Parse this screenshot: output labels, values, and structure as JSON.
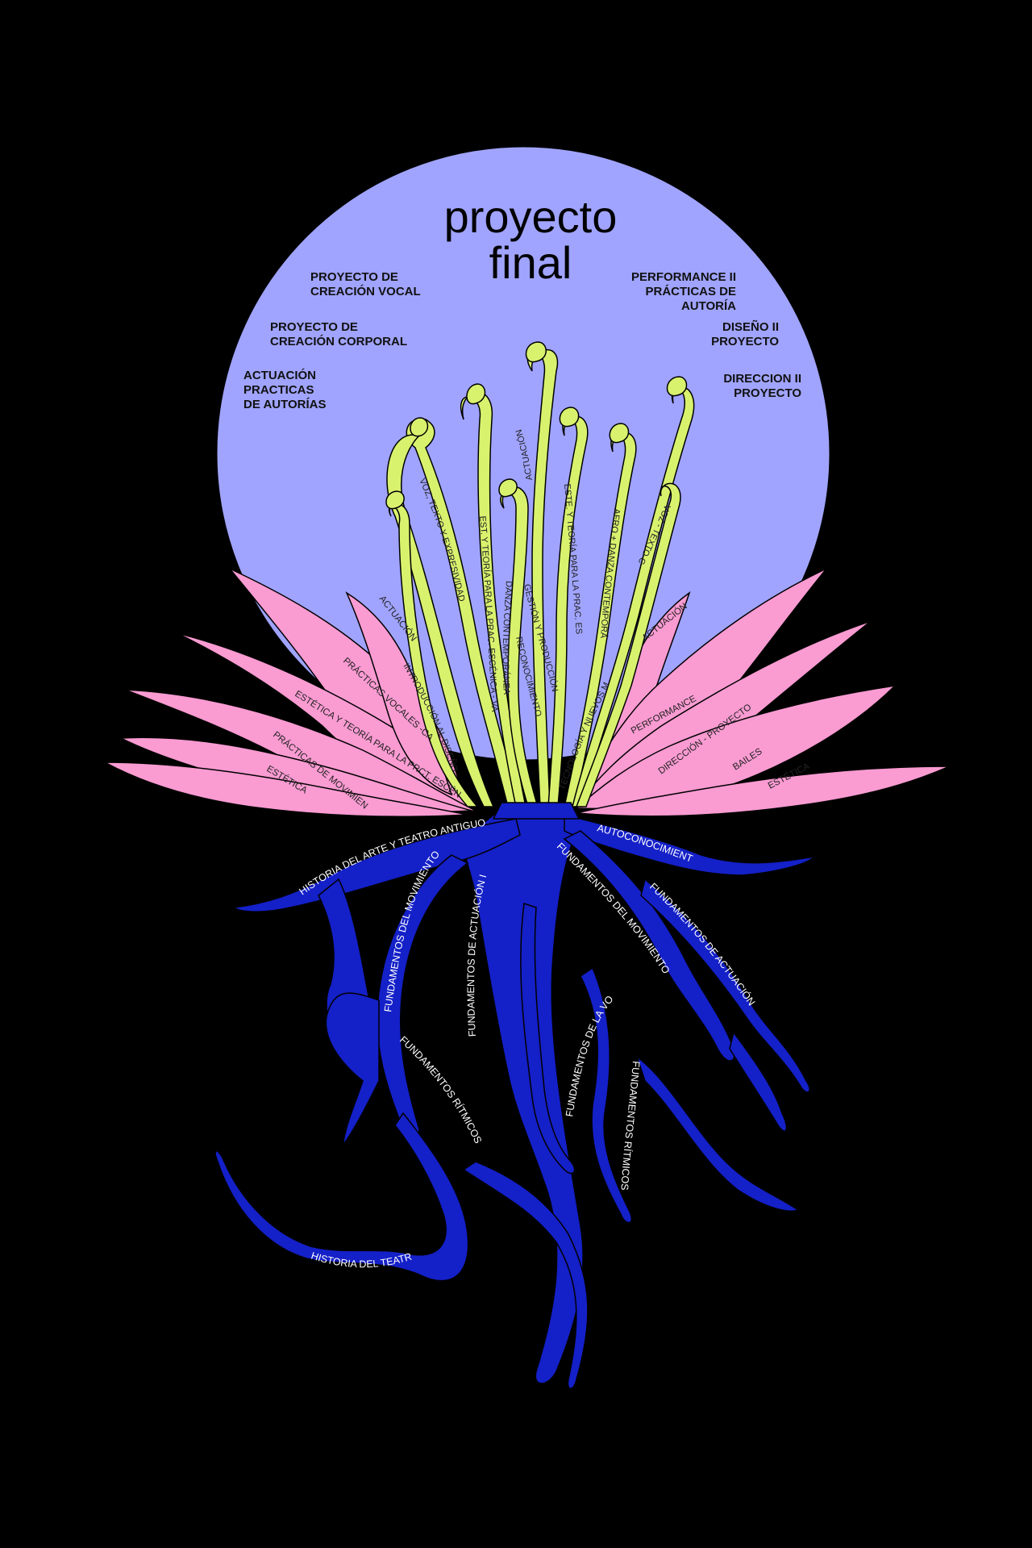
{
  "title": {
    "line1": "proyecto",
    "line2": "final"
  },
  "colors": {
    "background": "#000000",
    "moon": "#a0a4fe",
    "leaf": "#fa9bd2",
    "stem": "#d8f26e",
    "root": "#1420c8",
    "root_text": "#ffffff"
  },
  "moon_labels_left": [
    {
      "line1": "PROYECTO DE",
      "line2": "CREACIÓN VOCAL"
    },
    {
      "line1": "PROYECTO DE",
      "line2": "CREACIÓN CORPORAL"
    },
    {
      "line1": "ACTUACIÓN",
      "line2": "PRACTICAS",
      "line3": "DE AUTORÍAS"
    }
  ],
  "moon_labels_right": [
    {
      "line1": "PERFORMANCE II",
      "line2": "PRÁCTICAS DE",
      "line3": "AUTORÍA"
    },
    {
      "line1": "DISEÑO II",
      "line2": "PROYECTO"
    },
    {
      "line1": "DIRECCION II",
      "line2": "PROYECTO"
    }
  ],
  "leaves_left": [
    "ACTUACIÓN",
    "PRÁCTICAS VOCALES -CANTO",
    "ESTÉTICA Y TEORÍA PARA LA PRCT. ESCÉNICA",
    "PRÁCTICAS DE MOVIMIENTO",
    "ESTÉTICA"
  ],
  "leaves_right": [
    "ACTUACIÓN",
    "PERFORMANCE",
    "DIRECCIÓN - PROYECTO",
    "BAILES",
    "ESTÉTICA"
  ],
  "stems": [
    "VOZ, TEXTO Y EXPRESIVIDAD",
    "INTRODUCCIÓN AL DISEÑO",
    "EST. Y TEORÍA PARA LA PRAC. ESCÉNICA - VANGUARDIAS",
    "DANZA CONTEMPORÁNEA",
    "ACTUACIÓN",
    "RECONOCIMIENTO",
    "GESTIÓN Y PRODUCCIÓN",
    "ESTE. Y TEORÍA PARA LA PRAC. ESCÉNICA - S. XX",
    "AFRO + DANZA CONTEMPORÁNEA",
    "TECNOLOGÍA Y NUEVOS MEDIOS",
    "VOZ - TEXTO CLÁSICO"
  ],
  "roots": [
    "HISTORIA DEL ARTE  Y TEATRO ANTIGUO",
    "AUTOCONOCIMIENTO",
    "FUNDAMENTOS DEL MOVIMIENTO I",
    "FUNDAMENTOS DE ACTUACIÓN I",
    "FUNDAMENTOS DEL MOVIMIENTO",
    "FUNDAMENTOS DE ACTUACIÓN",
    "FUNDAMENTOS RÍTMICOS",
    "FUNDAMENTOS DE LA VOZ",
    "FUNDAMENTOS RÍTMICOS",
    "HISTORIA DEL TEATRO I"
  ]
}
